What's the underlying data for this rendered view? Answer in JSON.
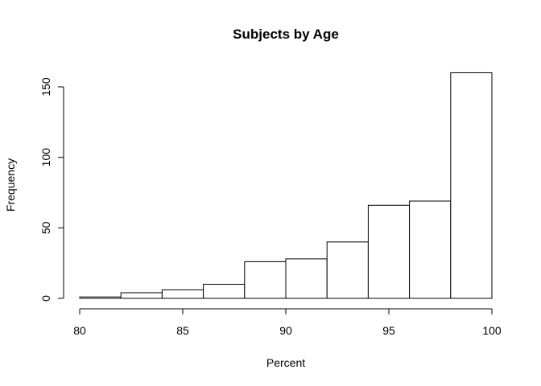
{
  "chart_data": {
    "type": "bar",
    "title": "Subjects by Age",
    "xlabel": "Percent",
    "ylabel": "Frequency",
    "bins": [
      {
        "from": 80,
        "to": 82,
        "value": 1
      },
      {
        "from": 82,
        "to": 84,
        "value": 4
      },
      {
        "from": 84,
        "to": 86,
        "value": 6
      },
      {
        "from": 86,
        "to": 88,
        "value": 10
      },
      {
        "from": 88,
        "to": 90,
        "value": 26
      },
      {
        "from": 90,
        "to": 92,
        "value": 28
      },
      {
        "from": 92,
        "to": 94,
        "value": 40
      },
      {
        "from": 94,
        "to": 96,
        "value": 66
      },
      {
        "from": 96,
        "to": 98,
        "value": 69
      },
      {
        "from": 98,
        "to": 100,
        "value": 160
      }
    ],
    "x_ticks": [
      "80",
      "85",
      "90",
      "95",
      "100"
    ],
    "y_ticks": [
      "0",
      "50",
      "100",
      "150"
    ],
    "xlim": [
      80,
      100
    ],
    "ylim": [
      0,
      150
    ],
    "grid": false
  }
}
